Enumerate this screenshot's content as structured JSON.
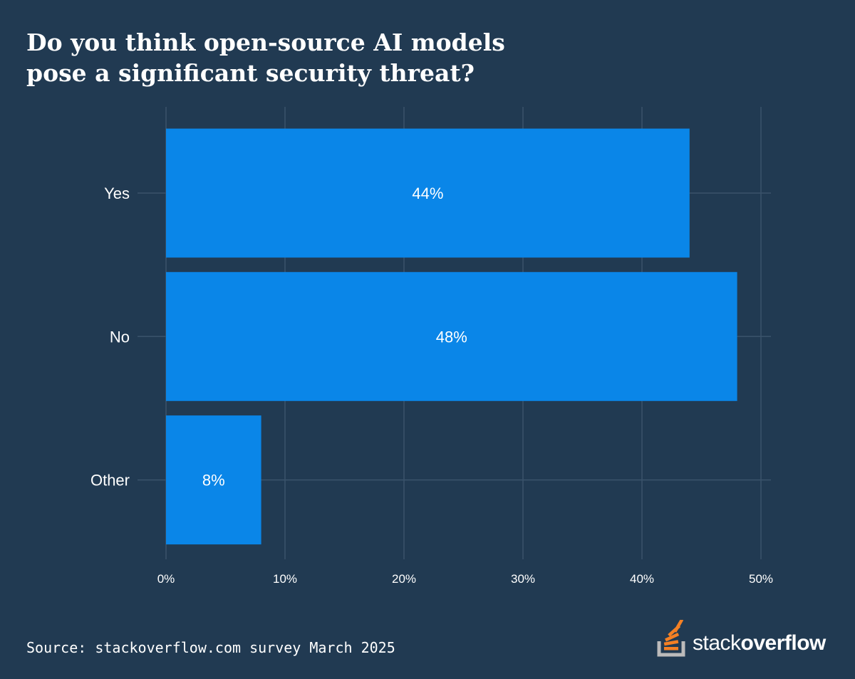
{
  "chart_data": {
    "type": "bar",
    "orientation": "horizontal",
    "title": "Do you think open-source AI models pose a significant security threat?",
    "title_lines": [
      "Do you think open-source AI models",
      "pose a significant security threat?"
    ],
    "categories": [
      "Yes",
      "No",
      "Other"
    ],
    "values": [
      44,
      48,
      8
    ],
    "value_labels": [
      "44%",
      "48%",
      "8%"
    ],
    "xlabel": "",
    "ylabel": "",
    "xlim": [
      0,
      50
    ],
    "xticks": [
      0,
      10,
      20,
      30,
      40,
      50
    ],
    "xtick_labels": [
      "0%",
      "10%",
      "20%",
      "30%",
      "40%",
      "50%"
    ],
    "grid": true
  },
  "colors": {
    "background": "#213a52",
    "bar": "#0a86e8",
    "grid": "#3a536b",
    "text": "#ffffff",
    "logo_accent": "#f48024",
    "logo_tray": "#bcbbbb"
  },
  "footer": {
    "source": "Source: stackoverflow.com survey March 2025"
  },
  "logo": {
    "icon": "stackoverflow-icon",
    "word1": "stack",
    "word2": "overflow"
  }
}
